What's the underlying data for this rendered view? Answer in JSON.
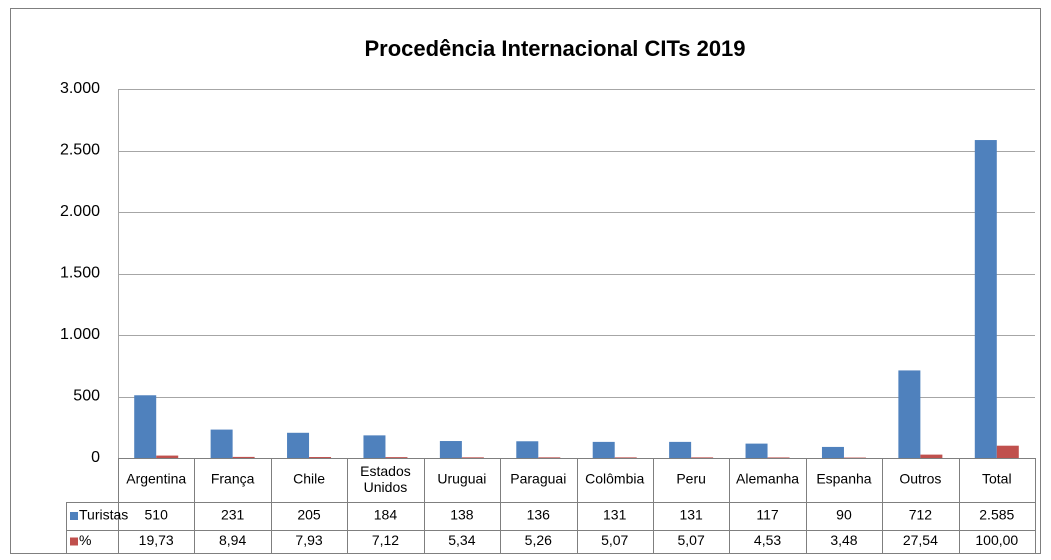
{
  "chart_data": {
    "type": "bar",
    "title": "Procedência Internacional CITs 2019",
    "categories": [
      "Argentina",
      "França",
      "Chile",
      "Estados Unidos",
      "Uruguai",
      "Paraguai",
      "Colômbia",
      "Peru",
      "Alemanha",
      "Espanha",
      "Outros",
      "Total"
    ],
    "series": [
      {
        "name": "Turistas",
        "color": "#4f81bd",
        "values": [
          510,
          231,
          205,
          184,
          138,
          136,
          131,
          131,
          117,
          90,
          712,
          2585
        ],
        "value_labels": [
          "510",
          "231",
          "205",
          "184",
          "138",
          "136",
          "131",
          "131",
          "117",
          "90",
          "712",
          "2.585"
        ]
      },
      {
        "name": "%",
        "color": "#c0504d",
        "values": [
          19.73,
          8.94,
          7.93,
          7.12,
          5.34,
          5.26,
          5.07,
          5.07,
          4.53,
          3.48,
          27.54,
          100
        ],
        "value_labels": [
          "19,73",
          "8,94",
          "7,93",
          "7,12",
          "5,34",
          "5,26",
          "5,07",
          "5,07",
          "4,53",
          "3,48",
          "27,54",
          "100,00"
        ]
      }
    ],
    "ylim": [
      0,
      3000
    ],
    "yticks": [
      0,
      500,
      {
        "value": 1000,
        "label": "1.000"
      },
      {
        "value": 1500,
        "label": "1.500"
      },
      {
        "value": 2000,
        "label": "2.000"
      },
      {
        "value": 2500,
        "label": "2.500"
      },
      {
        "value": 3000,
        "label": "3.000"
      }
    ],
    "grid": true
  }
}
